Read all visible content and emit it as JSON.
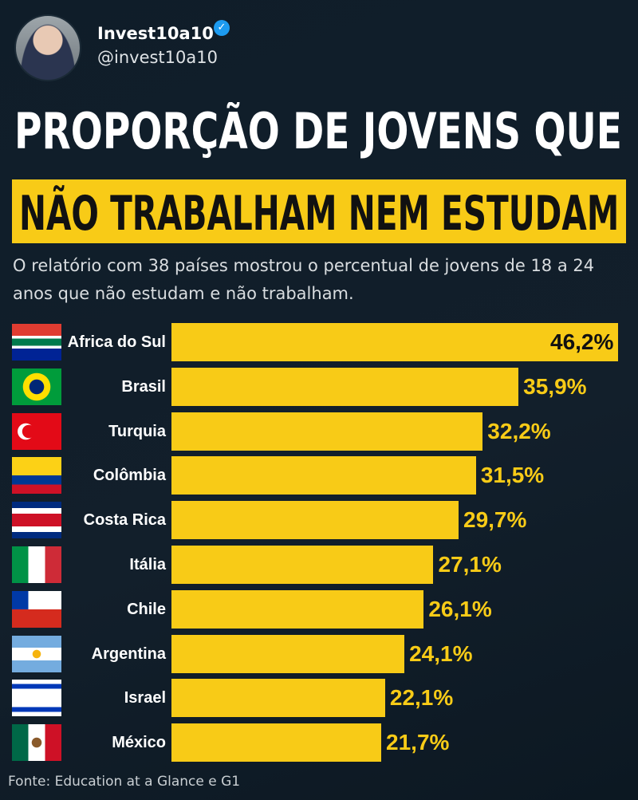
{
  "header": {
    "name": "Invest10a10",
    "handle": "@invest10a10"
  },
  "chart_data": {
    "type": "bar",
    "title": "PROPORÇÃO DE JOVENS QUE",
    "title_highlight": "NÃO TRABALHAM NEM ESTUDAM",
    "subtitle": "O relatório com 38 países mostrou o percentual de jovens de 18 a 24 anos que não estudam e não trabalham.",
    "categories": [
      "Africa do Sul",
      "Brasil",
      "Turquia",
      "Colômbia",
      "Costa Rica",
      "Itália",
      "Chile",
      "Argentina",
      "Israel",
      "México"
    ],
    "values": [
      46.2,
      35.9,
      32.2,
      31.5,
      29.7,
      27.1,
      26.1,
      24.1,
      22.1,
      21.7
    ],
    "value_labels": [
      "46,2%",
      "35,9%",
      "32,2%",
      "31,5%",
      "29,7%",
      "27,1%",
      "26,1%",
      "24,1%",
      "22,1%",
      "21,7%"
    ],
    "color": "#f8cb17",
    "source": "Fonte: Education at a Glance e G1"
  }
}
